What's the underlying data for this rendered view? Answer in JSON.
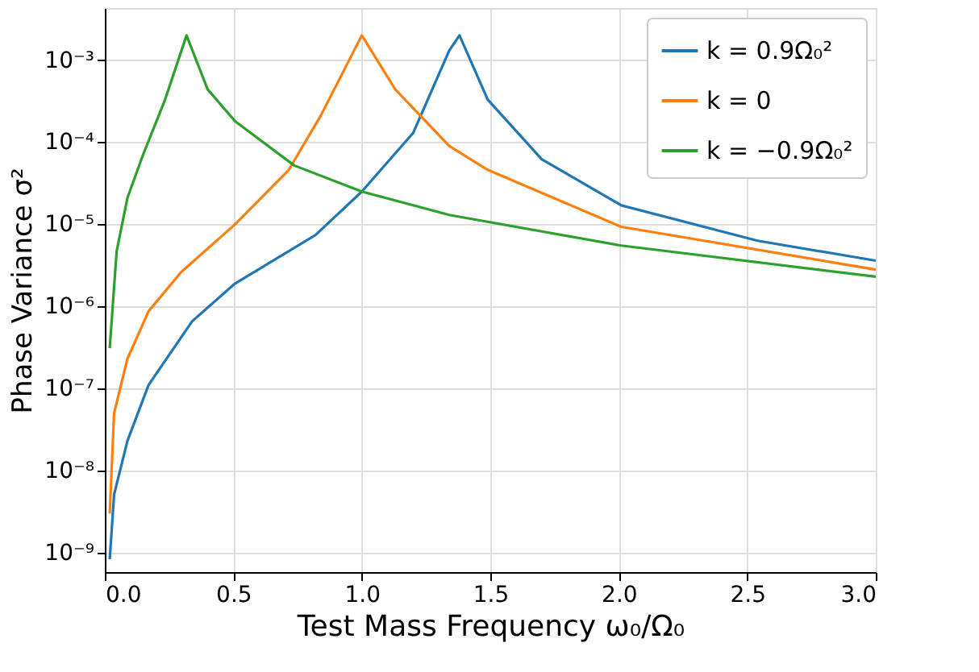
{
  "chart_data": {
    "type": "line",
    "xlabel": "Test Mass Frequency ω₀/Ω₀",
    "ylabel": "Phase Variance σ²",
    "log": "y",
    "grid": true,
    "legend": "top right",
    "line_style": "solid",
    "marker": "none",
    "xlim": [
      0,
      3.0
    ],
    "ylim": [
      5.8e-10,
      0.0043
    ],
    "xticks": [
      {
        "value": 0,
        "label": "0.0"
      },
      {
        "value": 0.5,
        "label": "0.5"
      },
      {
        "value": 1,
        "label": "1.0"
      },
      {
        "value": 1.5,
        "label": "1.5"
      },
      {
        "value": 2,
        "label": "2.0"
      },
      {
        "value": 2.5,
        "label": "2.5"
      },
      {
        "value": 3,
        "label": "3.0"
      }
    ],
    "yticks": [
      {
        "value": 1e-09,
        "label": "10⁻⁹"
      },
      {
        "value": 1e-08,
        "label": "10⁻⁸"
      },
      {
        "value": 1e-07,
        "label": "10⁻⁷"
      },
      {
        "value": 1e-06,
        "label": "10⁻⁶"
      },
      {
        "value": 1e-05,
        "label": "10⁻⁵"
      },
      {
        "value": 0.0001,
        "label": "10⁻⁴"
      },
      {
        "value": 0.001,
        "label": "10⁻³"
      }
    ],
    "series": [
      {
        "name": "k = 0.9Ω₀²",
        "color": "#1f77b4",
        "x": [
          0.019,
          0.036,
          0.088,
          0.17,
          0.34,
          0.507,
          0.82,
          1.0,
          1.2,
          1.34,
          1.38,
          1.49,
          1.7,
          2.01,
          2.54,
          3.0
        ],
        "values": [
          8.3e-10,
          5.1e-09,
          2.3e-08,
          1.1e-07,
          6.6e-07,
          1.9e-06,
          7.4e-06,
          2.5e-05,
          0.00013,
          0.0013,
          0.002,
          0.00033,
          6.2e-05,
          1.7e-05,
          6.3e-06,
          3.6e-06
        ]
      },
      {
        "name": "k = 0",
        "color": "#ff7f0e",
        "x": [
          0.019,
          0.036,
          0.088,
          0.17,
          0.296,
          0.507,
          0.716,
          0.84,
          1.0,
          1.13,
          1.34,
          1.49,
          2.01,
          3.0
        ],
        "values": [
          3e-09,
          5e-08,
          2.3e-07,
          8.7e-07,
          2.6e-06,
          1e-05,
          4.6e-05,
          0.00021,
          0.002,
          0.00044,
          9e-05,
          4.6e-05,
          9.3e-06,
          2.8e-06
        ]
      },
      {
        "name": "k = −0.9Ω₀²",
        "color": "#2ca02c",
        "x": [
          0.019,
          0.046,
          0.088,
          0.15,
          0.233,
          0.318,
          0.4,
          0.507,
          0.737,
          1.0,
          1.34,
          2.01,
          3.0
        ],
        "values": [
          3.1e-07,
          4.7e-06,
          2.1e-05,
          7.2e-05,
          0.00032,
          0.002,
          0.00044,
          0.00018,
          5.2e-05,
          2.5e-05,
          1.3e-05,
          5.5e-06,
          2.3e-06
        ]
      }
    ]
  }
}
